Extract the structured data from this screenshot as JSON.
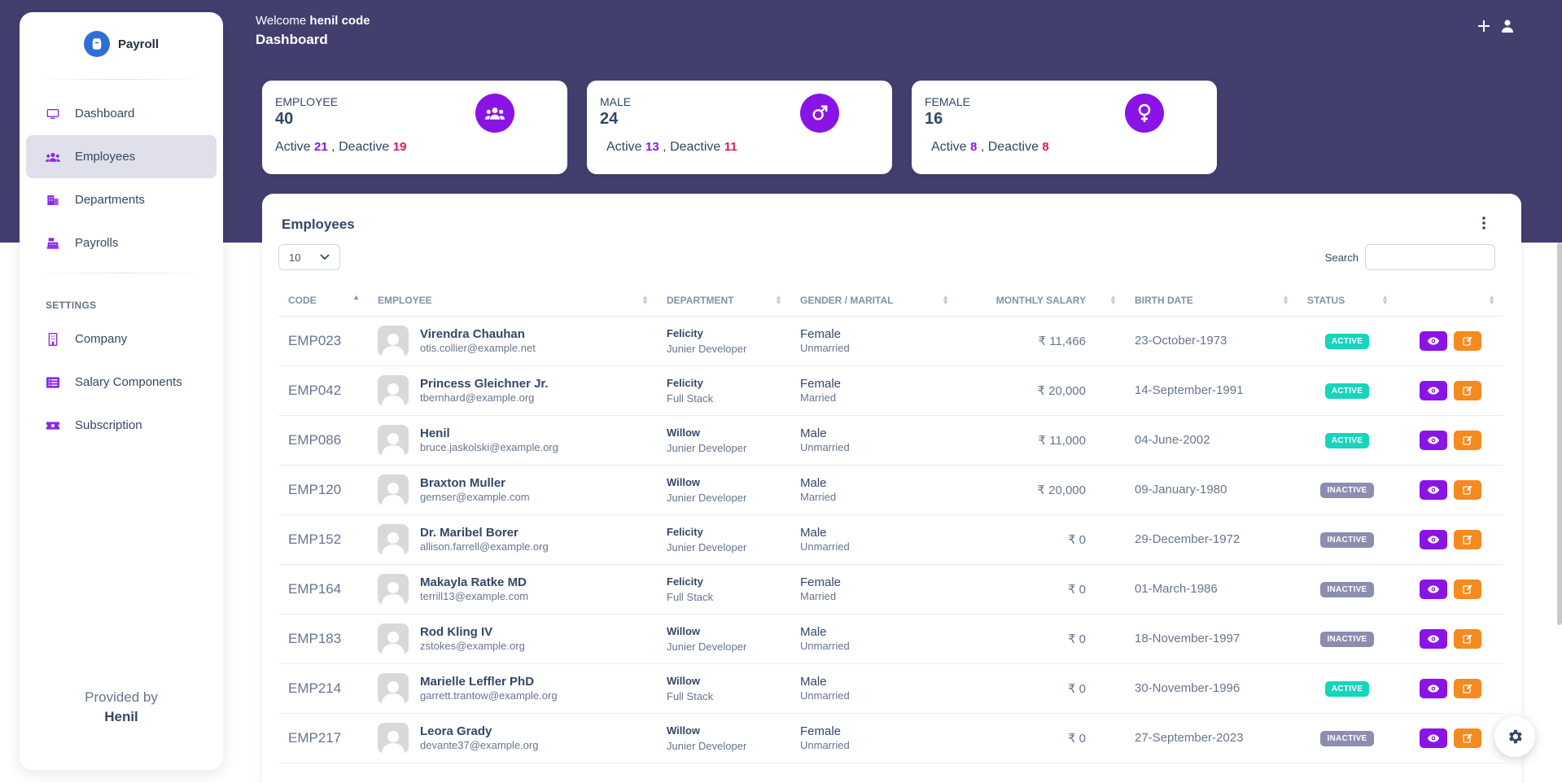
{
  "header": {
    "welcome_prefix": "Welcome",
    "user_name": "henil code",
    "page_title": "Dashboard"
  },
  "sidebar": {
    "brand": "Payroll",
    "items": [
      {
        "label": "Dashboard",
        "icon": "monitor-icon"
      },
      {
        "label": "Employees",
        "icon": "users-icon",
        "active": true
      },
      {
        "label": "Departments",
        "icon": "building-icon"
      },
      {
        "label": "Payrolls",
        "icon": "cash-register-icon"
      }
    ],
    "settings_heading": "SETTINGS",
    "settings_items": [
      {
        "label": "Company",
        "icon": "office-icon"
      },
      {
        "label": "Salary Components",
        "icon": "list-icon"
      },
      {
        "label": "Subscription",
        "icon": "ticket-icon"
      }
    ],
    "footer_line1": "Provided by",
    "footer_line2": "Henil"
  },
  "stats": [
    {
      "label": "EMPLOYEE",
      "value": "40",
      "active_label": "Active",
      "active": "21",
      "deactive_label": ", Deactive",
      "deactive": "19",
      "icon": "users-icon"
    },
    {
      "label": "MALE",
      "value": "24",
      "active_label": "Active",
      "active": "13",
      "deactive_label": ", Deactive",
      "deactive": "11",
      "icon": "male-icon"
    },
    {
      "label": "FEMALE",
      "value": "16",
      "active_label": "Active",
      "active": "8",
      "deactive_label": ", Deactive",
      "deactive": "8",
      "icon": "female-icon"
    }
  ],
  "employees_card": {
    "title": "Employees",
    "page_size": "10",
    "search_label": "Search",
    "search_value": "",
    "columns": [
      "CODE",
      "EMPLOYEE",
      "DEPARTMENT",
      "GENDER / MARITAL",
      "MONTHLY SALARY",
      "BIRTH DATE",
      "STATUS",
      ""
    ],
    "rows": [
      {
        "code": "EMP023",
        "name": "Virendra Chauhan",
        "email": "otis.collier@example.net",
        "department": "Felicity",
        "role": "Junier Developer",
        "gender": "Female",
        "marital": "Unmarried",
        "salary": "₹ 11,466",
        "birth": "23-October-1973",
        "status": "ACTIVE"
      },
      {
        "code": "EMP042",
        "name": "Princess Gleichner Jr.",
        "email": "tbernhard@example.org",
        "department": "Felicity",
        "role": "Full Stack",
        "gender": "Female",
        "marital": "Married",
        "salary": "₹ 20,000",
        "birth": "14-September-1991",
        "status": "ACTIVE"
      },
      {
        "code": "EMP086",
        "name": "Henil",
        "email": "bruce.jaskolski@example.org",
        "department": "Willow",
        "role": "Junier Developer",
        "gender": "Male",
        "marital": "Unmarried",
        "salary": "₹ 11,000",
        "birth": "04-June-2002",
        "status": "ACTIVE"
      },
      {
        "code": "EMP120",
        "name": "Braxton Muller",
        "email": "gernser@example.com",
        "department": "Willow",
        "role": "Junier Developer",
        "gender": "Male",
        "marital": "Married",
        "salary": "₹ 20,000",
        "birth": "09-January-1980",
        "status": "INACTIVE"
      },
      {
        "code": "EMP152",
        "name": "Dr. Maribel Borer",
        "email": "allison.farrell@example.org",
        "department": "Felicity",
        "role": "Junier Developer",
        "gender": "Male",
        "marital": "Unmarried",
        "salary": "₹ 0",
        "birth": "29-December-1972",
        "status": "INACTIVE"
      },
      {
        "code": "EMP164",
        "name": "Makayla Ratke MD",
        "email": "terrill13@example.com",
        "department": "Felicity",
        "role": "Full Stack",
        "gender": "Female",
        "marital": "Married",
        "salary": "₹ 0",
        "birth": "01-March-1986",
        "status": "INACTIVE"
      },
      {
        "code": "EMP183",
        "name": "Rod Kling IV",
        "email": "zstokes@example.org",
        "department": "Willow",
        "role": "Junier Developer",
        "gender": "Male",
        "marital": "Unmarried",
        "salary": "₹ 0",
        "birth": "18-November-1997",
        "status": "INACTIVE"
      },
      {
        "code": "EMP214",
        "name": "Marielle Leffler PhD",
        "email": "garrett.trantow@example.org",
        "department": "Willow",
        "role": "Full Stack",
        "gender": "Male",
        "marital": "Unmarried",
        "salary": "₹ 0",
        "birth": "30-November-1996",
        "status": "ACTIVE"
      },
      {
        "code": "EMP217",
        "name": "Leora Grady",
        "email": "devante37@example.org",
        "department": "Willow",
        "role": "Junier Developer",
        "gender": "Female",
        "marital": "Unmarried",
        "salary": "₹ 0",
        "birth": "27-September-2023",
        "status": "INACTIVE"
      }
    ]
  },
  "colors": {
    "header_bg": "#423f6f",
    "accent": "#8a14e6",
    "deactive": "#e6145e",
    "active_badge": "#17d4be",
    "inactive_badge": "#8c8db0",
    "edit_button": "#f58a1f"
  }
}
